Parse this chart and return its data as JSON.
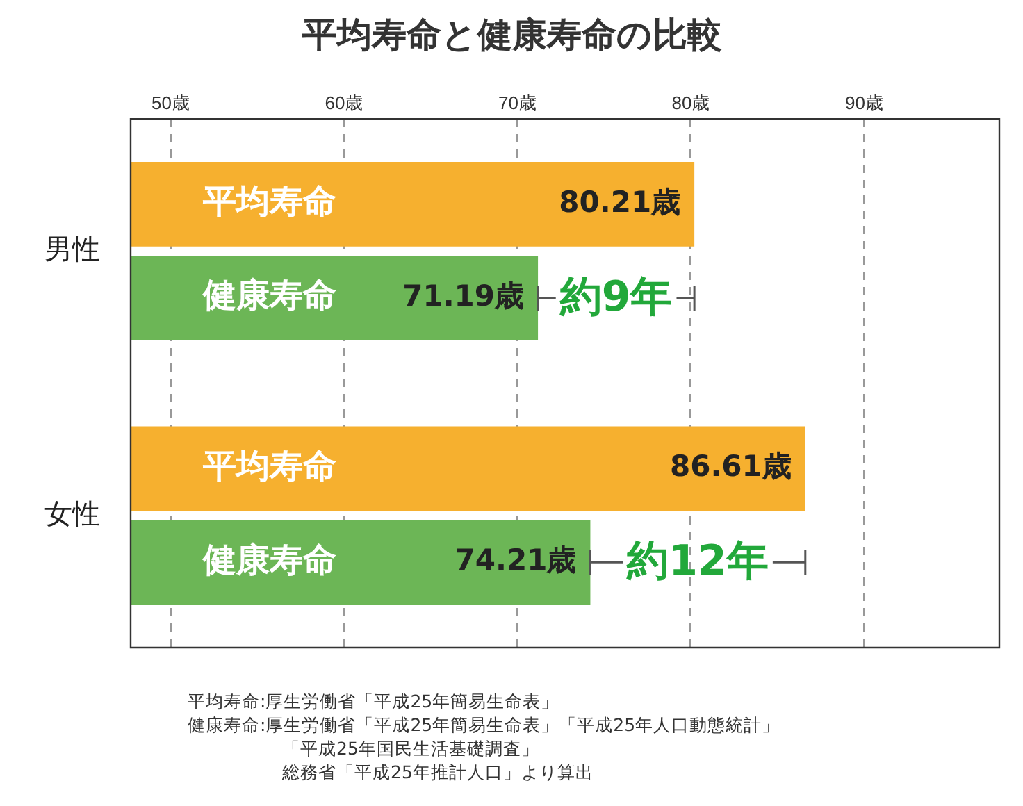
{
  "chart_data": {
    "type": "bar",
    "orientation": "horizontal",
    "title": "平均寿命と健康寿命の比較",
    "categories": [
      "男性",
      "女性"
    ],
    "series": [
      {
        "name": "平均寿命",
        "color": "#f6b02f",
        "values": [
          80.21,
          86.61
        ],
        "value_labels": [
          "80.21歳",
          "86.61歳"
        ]
      },
      {
        "name": "健康寿命",
        "color": "#6cb656",
        "values": [
          71.19,
          74.21
        ],
        "value_labels": [
          "71.19歳",
          "74.21歳"
        ]
      }
    ],
    "xlim": [
      47.7,
      97.8
    ],
    "xticks": [
      {
        "value": 50,
        "label": "50歳"
      },
      {
        "value": 60,
        "label": "60歳"
      },
      {
        "value": 70,
        "label": "70歳"
      },
      {
        "value": 80,
        "label": "80歳"
      },
      {
        "value": 90,
        "label": "90歳"
      }
    ],
    "grid": "x",
    "annotations": [
      {
        "text": "約9年",
        "x": 71.19,
        "y": "男性"
      },
      {
        "text": "約12年",
        "x": 74.21,
        "y": "女性"
      },
      "平均寿命:厚生労働省「平成25年簡易生命表」",
      "健康寿命:厚生労働省「平成25年簡易生命表」「平成25年人口動態統計」",
      "「平成25年国民生活基礎調査」",
      "総務省「平成25年推計人口」より算出"
    ]
  }
}
